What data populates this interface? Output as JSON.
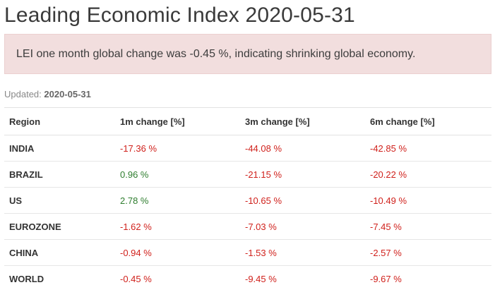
{
  "page": {
    "title": "Leading Economic Index 2020-05-31"
  },
  "alert": {
    "message": "LEI one month global change was -0.45 %, indicating shrinking global economy.",
    "color": "#f2dede"
  },
  "updated": {
    "label": "Updated:",
    "date": "2020-05-31"
  },
  "colors": {
    "negative": "#d0211c",
    "positive": "#2e7d2e"
  },
  "table": {
    "headers": [
      "Region",
      "1m change [%]",
      "3m change [%]",
      "6m change [%]"
    ],
    "rows": [
      {
        "region": "INDIA",
        "m1": "-17.36 %",
        "m3": "-44.08 %",
        "m6": "-42.85 %"
      },
      {
        "region": "BRAZIL",
        "m1": "0.96 %",
        "m3": "-21.15 %",
        "m6": "-20.22 %"
      },
      {
        "region": "US",
        "m1": "2.78 %",
        "m3": "-10.65 %",
        "m6": "-10.49 %"
      },
      {
        "region": "EUROZONE",
        "m1": "-1.62 %",
        "m3": "-7.03 %",
        "m6": "-7.45 %"
      },
      {
        "region": "CHINA",
        "m1": "-0.94 %",
        "m3": "-1.53 %",
        "m6": "-2.57 %"
      },
      {
        "region": "WORLD",
        "m1": "-0.45 %",
        "m3": "-9.45 %",
        "m6": "-9.67 %"
      }
    ]
  }
}
